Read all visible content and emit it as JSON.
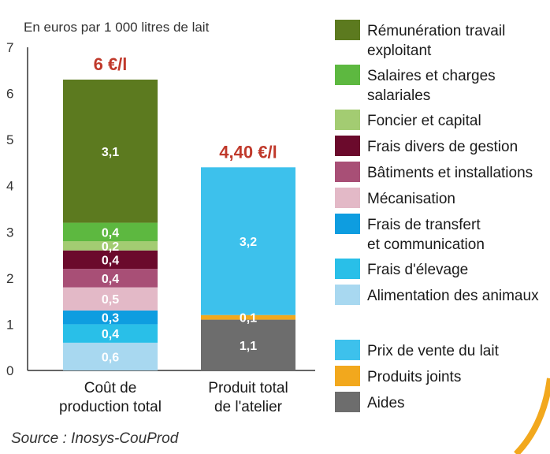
{
  "chart_data": {
    "type": "bar",
    "stacked": true,
    "ylabel": "En euros par 1 000 litres de lait",
    "ylim": [
      0,
      7
    ],
    "yticks": [
      0,
      1,
      2,
      3,
      4,
      5,
      6,
      7
    ],
    "grid": false,
    "legend_position": "right",
    "categories": [
      "Coût de production total",
      "Produit total de l'atelier"
    ],
    "category_lines": [
      [
        "Coût de",
        "production total"
      ],
      [
        "Produit total",
        "de l'atelier"
      ]
    ],
    "totals": [
      "6 €/l",
      "4,40 €/l"
    ],
    "bars": [
      {
        "segments": [
          {
            "name": "Alimentation des animaux",
            "value": 0.6,
            "label": "0,6",
            "color": "#a8d8f0"
          },
          {
            "name": "Frais d'élevage",
            "value": 0.4,
            "label": "0,4",
            "color": "#29bfe8"
          },
          {
            "name": "Frais de transfert et communication",
            "value": 0.3,
            "label": "0,3",
            "color": "#0e9de0"
          },
          {
            "name": "Mécanisation",
            "value": 0.5,
            "label": "0,5",
            "color": "#e3b9c7"
          },
          {
            "name": "Bâtiments et installations",
            "value": 0.4,
            "label": "0,4",
            "color": "#a84f76"
          },
          {
            "name": "Frais divers de gestion",
            "value": 0.4,
            "label": "0,4",
            "color": "#6b0a2c"
          },
          {
            "name": "Foncier et capital",
            "value": 0.2,
            "label": "0,2",
            "color": "#a3cc72"
          },
          {
            "name": "Salaires et charges salariales",
            "value": 0.4,
            "label": "0,4",
            "color": "#5db840"
          },
          {
            "name": "Rémunération travail exploitant",
            "value": 3.1,
            "label": "3,1",
            "color": "#5c7a1f"
          }
        ]
      },
      {
        "segments": [
          {
            "name": "Aides",
            "value": 1.1,
            "label": "1,1",
            "color": "#6d6d6d"
          },
          {
            "name": "Produits joints",
            "value": 0.1,
            "label": "0,1",
            "color": "#f2a81d"
          },
          {
            "name": "Prix de vente du lait",
            "value": 3.2,
            "label": "3,2",
            "color": "#3dc1ec"
          }
        ]
      }
    ],
    "legend": [
      {
        "lines": [
          "Rémunération travail",
          "exploitant"
        ],
        "color": "#5c7a1f"
      },
      {
        "lines": [
          "Salaires et charges",
          "salariales"
        ],
        "color": "#5db840"
      },
      {
        "lines": [
          "Foncier et capital"
        ],
        "color": "#a3cc72"
      },
      {
        "lines": [
          "Frais divers de gestion"
        ],
        "color": "#6b0a2c"
      },
      {
        "lines": [
          "Bâtiments et installations"
        ],
        "color": "#a84f76"
      },
      {
        "lines": [
          "Mécanisation"
        ],
        "color": "#e3b9c7"
      },
      {
        "lines": [
          "Frais de transfert",
          "et communication"
        ],
        "color": "#0e9de0"
      },
      {
        "lines": [
          "Frais d'élevage"
        ],
        "color": "#29bfe8"
      },
      {
        "lines": [
          "Alimentation des animaux"
        ],
        "color": "#a8d8f0"
      },
      {
        "lines": [
          "Prix de vente du lait"
        ],
        "color": "#3dc1ec"
      },
      {
        "lines": [
          "Produits joints"
        ],
        "color": "#f2a81d"
      },
      {
        "lines": [
          "Aides"
        ],
        "color": "#6d6d6d"
      }
    ]
  },
  "source": "Source : Inosys-CouProd",
  "colors": {
    "total_label": "#c0392b",
    "axis": "#333333",
    "decoration_arc": "#f2a81d"
  }
}
